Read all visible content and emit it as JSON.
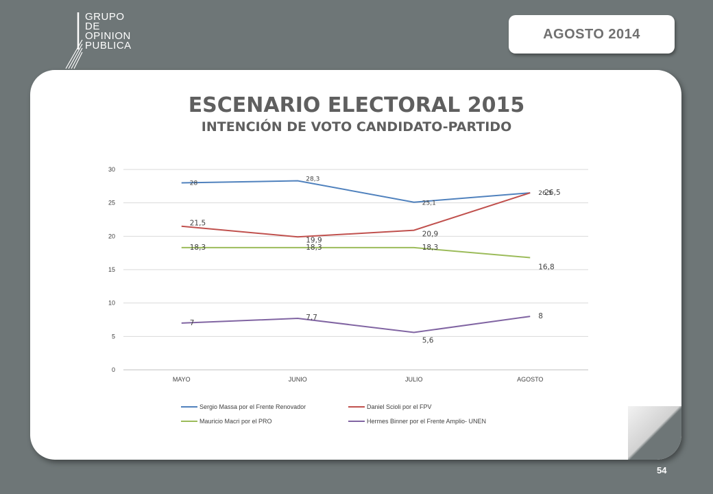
{
  "header": {
    "logo_lines": [
      "GRUPO",
      "DE",
      "OPINION",
      "PUBLICA"
    ],
    "date_label": "AGOSTO  2014"
  },
  "slide": {
    "title": "ESCENARIO ELECTORAL 2015",
    "subtitle": "INTENCIÓN DE VOTO CANDIDATO-PARTIDO",
    "page_number": "54"
  },
  "chart_data": {
    "type": "line",
    "categories": [
      "MAYO",
      "JUNIO",
      "JULIO",
      "AGOSTO"
    ],
    "ylim": [
      0,
      30
    ],
    "yticks": [
      0,
      5,
      10,
      15,
      20,
      25,
      30
    ],
    "grid": true,
    "legend_position": "bottom",
    "series": [
      {
        "name": "Sergio Massa por el Frente Renovador",
        "color": "#4f81bd",
        "values": [
          28,
          28.3,
          25.1,
          26.5
        ],
        "labels": [
          "28",
          "28,3",
          "25,1",
          "26,5"
        ]
      },
      {
        "name": "Daniel Scioli por el FPV",
        "color": "#c0504d",
        "values": [
          21.5,
          19.9,
          20.9,
          26.5
        ],
        "labels": [
          "21,5",
          "19,9",
          "20,9",
          "26,5"
        ]
      },
      {
        "name": "Mauricio Macri por el PRO",
        "color": "#9bbb59",
        "values": [
          18.3,
          18.3,
          18.3,
          16.8
        ],
        "labels": [
          "18,3",
          "18,3",
          "18,3",
          "16,8"
        ]
      },
      {
        "name": "Hermes Binner por el Frente Amplio- UNEN",
        "color": "#8064a2",
        "values": [
          7,
          7.7,
          5.6,
          8
        ],
        "labels": [
          "7",
          "7,7",
          "5,6",
          "8"
        ]
      }
    ]
  }
}
